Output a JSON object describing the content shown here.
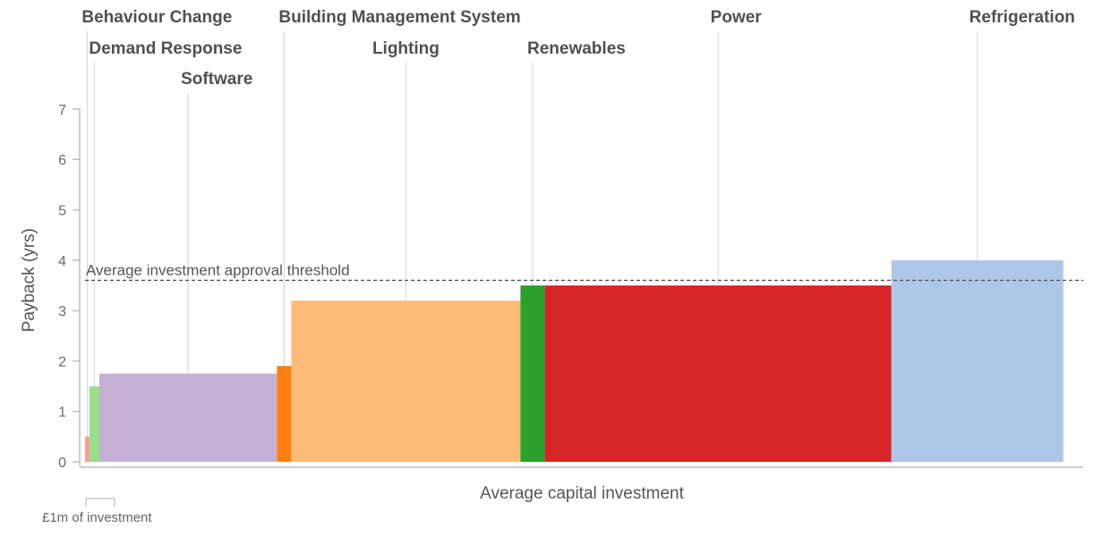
{
  "chart_data": {
    "type": "bar",
    "variable_width": true,
    "categories": [
      "Behaviour Change",
      "Demand Response",
      "Software",
      "Building Management System",
      "Lighting",
      "Renewables",
      "Power",
      "Refrigeration"
    ],
    "payback_years": [
      0.5,
      1.5,
      1.75,
      1.9,
      3.2,
      3.5,
      3.5,
      4.0
    ],
    "capital_investment_gbp_m": [
      0.15,
      0.35,
      6.2,
      0.5,
      8.0,
      0.85,
      12.1,
      6.0
    ],
    "colors": [
      "#ff9896",
      "#98df8a",
      "#c5b0d5",
      "#ff7f0e",
      "#ffbb78",
      "#2ca02c",
      "#d62728",
      "#aec7e8"
    ],
    "threshold": {
      "value": 3.6,
      "label": "Average investment approval threshold"
    },
    "ylabel": "Payback (yrs)",
    "xlabel": "Average capital investment",
    "ylim": [
      0,
      7
    ],
    "yticks": [
      0,
      1,
      2,
      3,
      4,
      5,
      6,
      7
    ],
    "scale_legend": {
      "label": "£1m of investment",
      "value_gbp_m": 1
    },
    "grid": false
  }
}
